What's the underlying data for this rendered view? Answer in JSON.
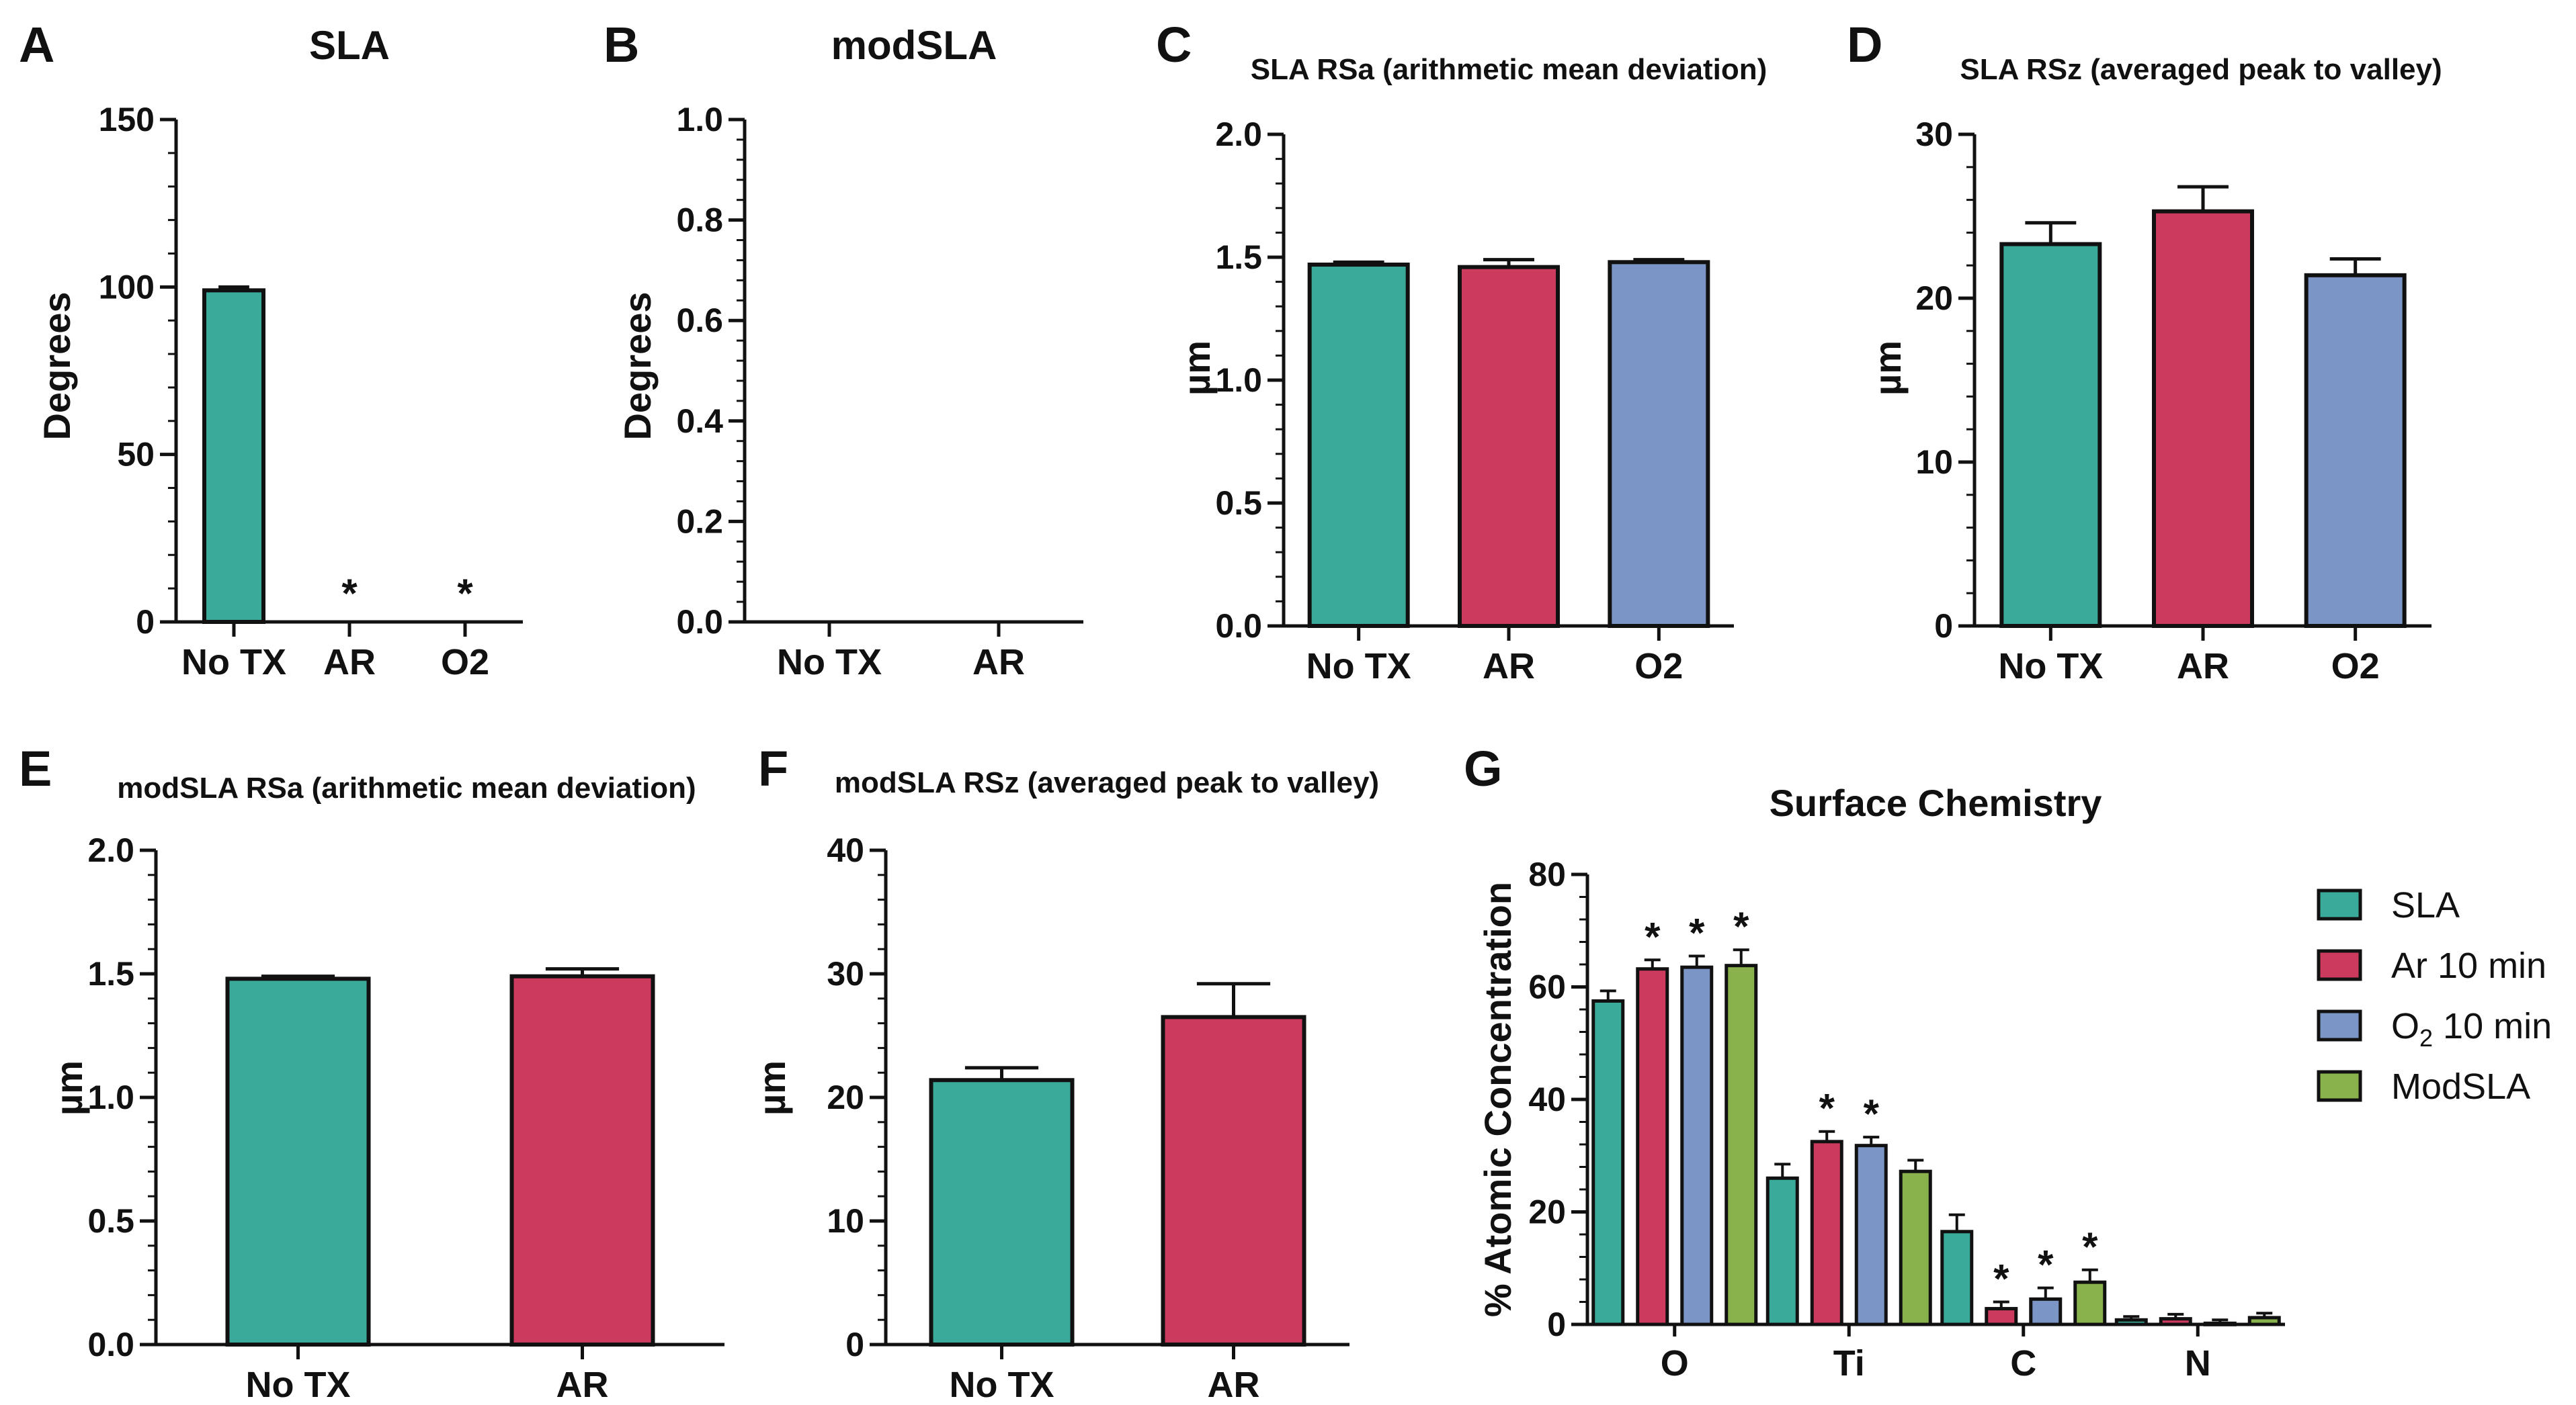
{
  "colors": {
    "teal": "#3aaa9a",
    "crimson": "#cc3a5e",
    "lavender": "#7b96c6",
    "olive": "#8ab24c",
    "axis": "#111111"
  },
  "chart_data": [
    {
      "letter": "A",
      "title": "SLA",
      "type": "bar",
      "ylabel": "Degrees",
      "ylim": [
        0,
        150
      ],
      "yticks": [
        0,
        50,
        100,
        150
      ],
      "categories": [
        "No TX",
        "AR",
        "O2"
      ],
      "values": [
        99,
        0,
        0
      ],
      "errors": [
        1,
        0,
        0
      ],
      "sig": [
        "",
        "*",
        "*"
      ]
    },
    {
      "letter": "B",
      "title": "modSLA",
      "type": "bar",
      "ylabel": "Degrees",
      "ylim": [
        0,
        1.0
      ],
      "yticks": [
        "0.0",
        "0.2",
        "0.4",
        "0.6",
        "0.8",
        "1.0"
      ],
      "categories": [
        "No TX",
        "AR"
      ],
      "values": [
        0,
        0
      ],
      "errors": [
        0,
        0
      ],
      "sig": [
        "",
        ""
      ]
    },
    {
      "letter": "C",
      "title": "SLA RSa (arithmetic mean deviation)",
      "type": "bar",
      "ylabel": "µm",
      "ylim": [
        0,
        2.0
      ],
      "yticks": [
        "0.0",
        "0.5",
        "1.0",
        "1.5",
        "2.0"
      ],
      "categories": [
        "No TX",
        "AR",
        "O2"
      ],
      "values": [
        1.47,
        1.46,
        1.48
      ],
      "errors": [
        0.01,
        0.03,
        0.01
      ],
      "sig": [
        "",
        "",
        ""
      ]
    },
    {
      "letter": "D",
      "title": "SLA RSz (averaged peak to valley)",
      "type": "bar",
      "ylabel": "µm",
      "ylim": [
        0,
        30
      ],
      "yticks": [
        0,
        10,
        20,
        30
      ],
      "categories": [
        "No TX",
        "AR",
        "O2"
      ],
      "values": [
        23.3,
        25.3,
        21.4
      ],
      "errors": [
        1.3,
        1.5,
        1.0
      ],
      "sig": [
        "",
        "",
        ""
      ]
    },
    {
      "letter": "E",
      "title": "modSLA RSa (arithmetic mean deviation)",
      "type": "bar",
      "ylabel": "µm",
      "ylim": [
        0,
        2.0
      ],
      "yticks": [
        "0.0",
        "0.5",
        "1.0",
        "1.5",
        "2.0"
      ],
      "categories": [
        "No TX",
        "AR"
      ],
      "values": [
        1.48,
        1.49
      ],
      "errors": [
        0.01,
        0.03
      ],
      "sig": [
        "",
        ""
      ]
    },
    {
      "letter": "F",
      "title": "modSLA RSz (averaged peak to valley)",
      "type": "bar",
      "ylabel": "µm",
      "ylim": [
        0,
        40
      ],
      "yticks": [
        0,
        10,
        20,
        30,
        40
      ],
      "categories": [
        "No TX",
        "AR"
      ],
      "values": [
        21.4,
        26.5
      ],
      "errors": [
        1.0,
        2.7
      ],
      "sig": [
        "",
        ""
      ]
    },
    {
      "letter": "G",
      "title": "Surface Chemistry",
      "type": "grouped-bar",
      "ylabel": "% Atomic Concentration",
      "ylim": [
        0,
        80
      ],
      "yticks": [
        0,
        20,
        40,
        60,
        80
      ],
      "categories": [
        "O",
        "Ti",
        "C",
        "N"
      ],
      "series": [
        {
          "name": "SLA",
          "label_main": "SLA",
          "label_sub": "",
          "label_rest": "",
          "values": [
            57.5,
            26,
            16.5,
            0.8
          ],
          "errors": [
            1.8,
            2.5,
            3.0,
            0.6
          ],
          "sig": [
            "",
            "",
            "",
            ""
          ]
        },
        {
          "name": "Ar 10 min",
          "label_main": "Ar 10 min",
          "label_sub": "",
          "label_rest": "",
          "values": [
            63.2,
            32.5,
            2.8,
            1.0
          ],
          "errors": [
            1.6,
            1.8,
            1.2,
            0.8
          ],
          "sig": [
            "*",
            "*",
            "*",
            ""
          ]
        },
        {
          "name": "O2 10 min",
          "label_main": "O",
          "label_sub": "2",
          "label_rest": " 10 min",
          "values": [
            63.5,
            31.8,
            4.5,
            0.2
          ],
          "errors": [
            2.0,
            1.5,
            2.0,
            0.6
          ],
          "sig": [
            "*",
            "*",
            "*",
            ""
          ]
        },
        {
          "name": "ModSLA",
          "label_main": "ModSLA",
          "label_sub": "",
          "label_rest": "",
          "values": [
            63.8,
            27.2,
            7.5,
            1.2
          ],
          "errors": [
            2.8,
            2.0,
            2.2,
            0.8
          ],
          "sig": [
            "*",
            "",
            "*",
            ""
          ]
        }
      ]
    }
  ]
}
